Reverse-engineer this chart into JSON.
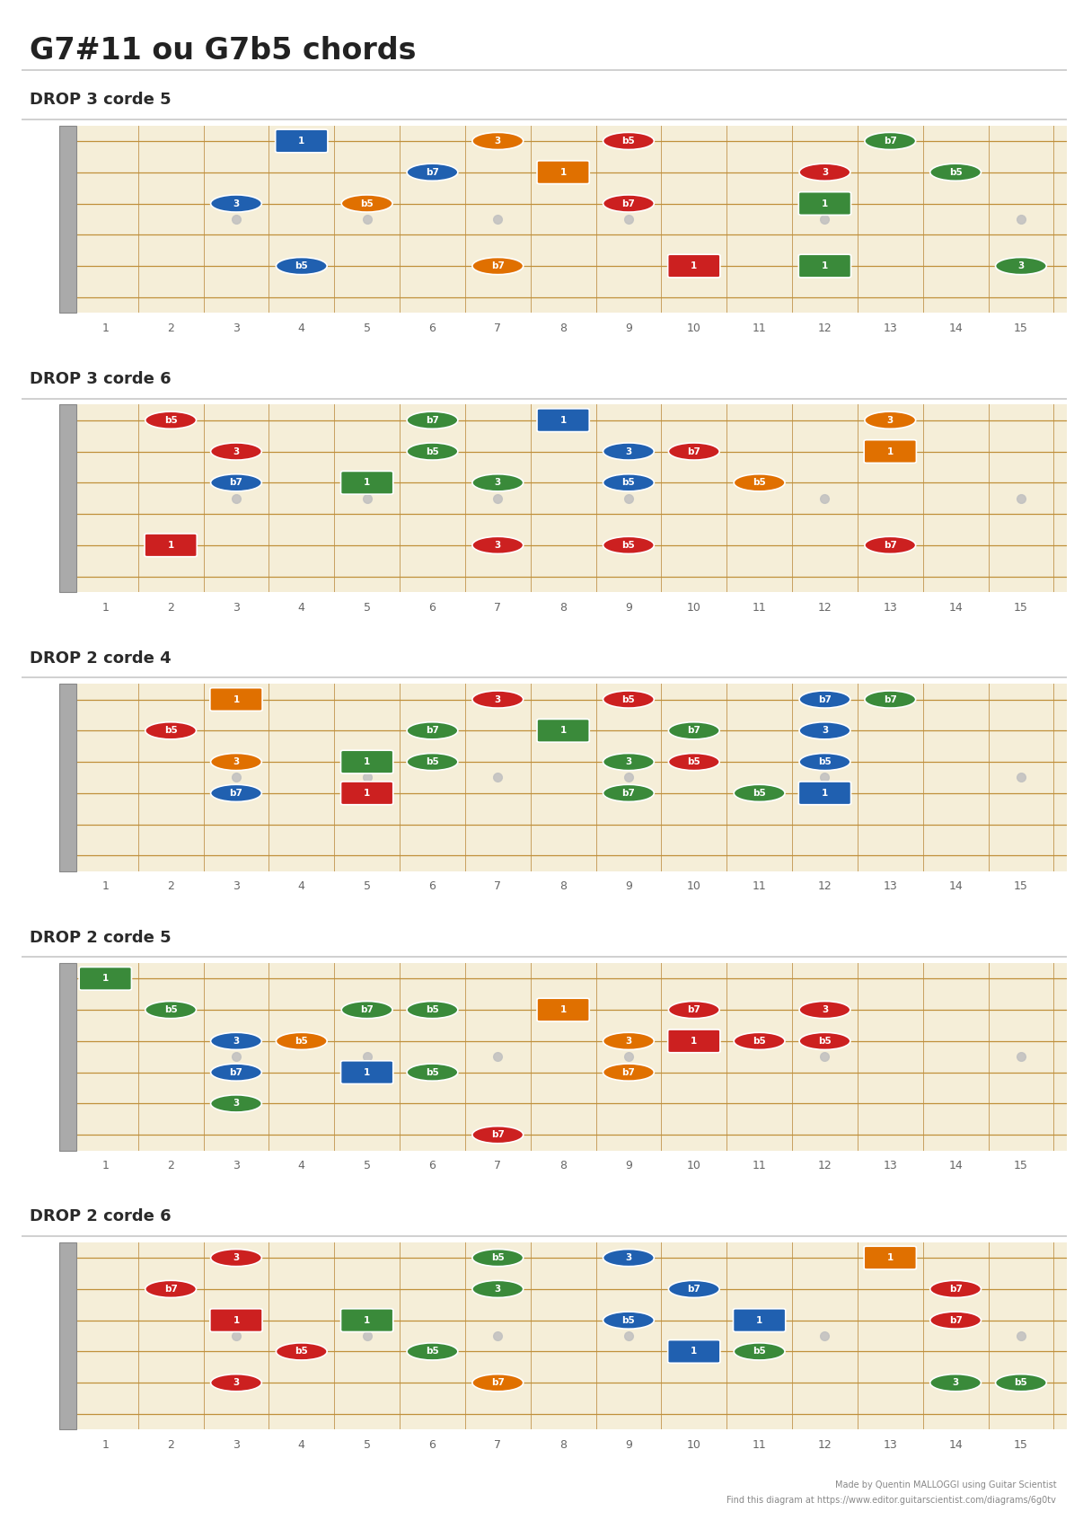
{
  "title": "G7#11 ou G7b5 chords",
  "bg_color": "#ffffff",
  "fretboard_bg": "#f5eed8",
  "fret_color": "#c8a060",
  "string_color": "#c0903a",
  "n_frets": 15,
  "n_strings": 6,
  "marker_frets": [
    3,
    5,
    7,
    9,
    12,
    15
  ],
  "sections": [
    {
      "label": "DROP 3 corde 5",
      "notes": [
        {
          "fret": 4,
          "string": 1,
          "label": "1",
          "color": "#2060b0",
          "shape": "square"
        },
        {
          "fret": 7,
          "string": 1,
          "label": "3",
          "color": "#e07000",
          "shape": "circle"
        },
        {
          "fret": 9,
          "string": 1,
          "label": "b5",
          "color": "#cc2020",
          "shape": "circle"
        },
        {
          "fret": 13,
          "string": 1,
          "label": "b7",
          "color": "#3a8a3a",
          "shape": "circle"
        },
        {
          "fret": 6,
          "string": 2,
          "label": "b7",
          "color": "#2060b0",
          "shape": "circle"
        },
        {
          "fret": 8,
          "string": 2,
          "label": "1",
          "color": "#e07000",
          "shape": "square"
        },
        {
          "fret": 12,
          "string": 2,
          "label": "3",
          "color": "#cc2020",
          "shape": "circle"
        },
        {
          "fret": 14,
          "string": 2,
          "label": "b5",
          "color": "#3a8a3a",
          "shape": "circle"
        },
        {
          "fret": 3,
          "string": 3,
          "label": "3",
          "color": "#2060b0",
          "shape": "circle"
        },
        {
          "fret": 5,
          "string": 3,
          "label": "b5",
          "color": "#e07000",
          "shape": "circle"
        },
        {
          "fret": 9,
          "string": 3,
          "label": "b7",
          "color": "#cc2020",
          "shape": "circle"
        },
        {
          "fret": 12,
          "string": 3,
          "label": "1",
          "color": "#3a8a3a",
          "shape": "square"
        },
        {
          "fret": 4,
          "string": 5,
          "label": "b5",
          "color": "#2060b0",
          "shape": "circle"
        },
        {
          "fret": 7,
          "string": 5,
          "label": "b7",
          "color": "#e07000",
          "shape": "circle"
        },
        {
          "fret": 10,
          "string": 5,
          "label": "1",
          "color": "#cc2020",
          "shape": "square"
        },
        {
          "fret": 12,
          "string": 5,
          "label": "1",
          "color": "#3a8a3a",
          "shape": "square"
        },
        {
          "fret": 15,
          "string": 5,
          "label": "3",
          "color": "#3a8a3a",
          "shape": "circle"
        }
      ]
    },
    {
      "label": "DROP 3 corde 6",
      "notes": [
        {
          "fret": 2,
          "string": 1,
          "label": "b5",
          "color": "#cc2020",
          "shape": "circle"
        },
        {
          "fret": 6,
          "string": 1,
          "label": "b7",
          "color": "#3a8a3a",
          "shape": "circle"
        },
        {
          "fret": 8,
          "string": 1,
          "label": "1",
          "color": "#2060b0",
          "shape": "square"
        },
        {
          "fret": 13,
          "string": 1,
          "label": "3",
          "color": "#e07000",
          "shape": "circle"
        },
        {
          "fret": 3,
          "string": 2,
          "label": "3",
          "color": "#cc2020",
          "shape": "circle"
        },
        {
          "fret": 6,
          "string": 2,
          "label": "b5",
          "color": "#3a8a3a",
          "shape": "circle"
        },
        {
          "fret": 9,
          "string": 2,
          "label": "3",
          "color": "#2060b0",
          "shape": "circle"
        },
        {
          "fret": 10,
          "string": 2,
          "label": "b7",
          "color": "#cc2020",
          "shape": "circle"
        },
        {
          "fret": 13,
          "string": 2,
          "label": "1",
          "color": "#e07000",
          "shape": "square"
        },
        {
          "fret": 3,
          "string": 3,
          "label": "b7",
          "color": "#2060b0",
          "shape": "circle"
        },
        {
          "fret": 5,
          "string": 3,
          "label": "1",
          "color": "#3a8a3a",
          "shape": "square"
        },
        {
          "fret": 7,
          "string": 3,
          "label": "3",
          "color": "#3a8a3a",
          "shape": "circle"
        },
        {
          "fret": 9,
          "string": 3,
          "label": "b5",
          "color": "#2060b0",
          "shape": "circle"
        },
        {
          "fret": 11,
          "string": 3,
          "label": "b5",
          "color": "#e07000",
          "shape": "circle"
        },
        {
          "fret": 2,
          "string": 5,
          "label": "1",
          "color": "#cc2020",
          "shape": "square"
        },
        {
          "fret": 7,
          "string": 5,
          "label": "3",
          "color": "#cc2020",
          "shape": "circle"
        },
        {
          "fret": 9,
          "string": 5,
          "label": "b5",
          "color": "#cc2020",
          "shape": "circle"
        },
        {
          "fret": 13,
          "string": 5,
          "label": "b7",
          "color": "#cc2020",
          "shape": "circle"
        }
      ]
    },
    {
      "label": "DROP 2 corde 4",
      "notes": [
        {
          "fret": 3,
          "string": 1,
          "label": "1",
          "color": "#e07000",
          "shape": "square"
        },
        {
          "fret": 7,
          "string": 1,
          "label": "3",
          "color": "#cc2020",
          "shape": "circle"
        },
        {
          "fret": 9,
          "string": 1,
          "label": "b5",
          "color": "#cc2020",
          "shape": "circle"
        },
        {
          "fret": 12,
          "string": 1,
          "label": "b7",
          "color": "#2060b0",
          "shape": "circle"
        },
        {
          "fret": 2,
          "string": 2,
          "label": "b5",
          "color": "#cc2020",
          "shape": "circle"
        },
        {
          "fret": 6,
          "string": 2,
          "label": "b7",
          "color": "#3a8a3a",
          "shape": "circle"
        },
        {
          "fret": 8,
          "string": 2,
          "label": "1",
          "color": "#3a8a3a",
          "shape": "square"
        },
        {
          "fret": 10,
          "string": 2,
          "label": "b7",
          "color": "#3a8a3a",
          "shape": "circle"
        },
        {
          "fret": 12,
          "string": 2,
          "label": "3",
          "color": "#2060b0",
          "shape": "circle"
        },
        {
          "fret": 3,
          "string": 3,
          "label": "3",
          "color": "#e07000",
          "shape": "circle"
        },
        {
          "fret": 5,
          "string": 3,
          "label": "1",
          "color": "#3a8a3a",
          "shape": "square"
        },
        {
          "fret": 6,
          "string": 3,
          "label": "b5",
          "color": "#3a8a3a",
          "shape": "circle"
        },
        {
          "fret": 9,
          "string": 3,
          "label": "3",
          "color": "#3a8a3a",
          "shape": "circle"
        },
        {
          "fret": 10,
          "string": 3,
          "label": "b5",
          "color": "#cc2020",
          "shape": "circle"
        },
        {
          "fret": 12,
          "string": 3,
          "label": "b5",
          "color": "#2060b0",
          "shape": "circle"
        },
        {
          "fret": 3,
          "string": 4,
          "label": "b7",
          "color": "#2060b0",
          "shape": "circle"
        },
        {
          "fret": 5,
          "string": 4,
          "label": "1",
          "color": "#cc2020",
          "shape": "square"
        },
        {
          "fret": 9,
          "string": 4,
          "label": "b7",
          "color": "#3a8a3a",
          "shape": "circle"
        },
        {
          "fret": 11,
          "string": 4,
          "label": "b5",
          "color": "#3a8a3a",
          "shape": "circle"
        },
        {
          "fret": 12,
          "string": 4,
          "label": "1",
          "color": "#2060b0",
          "shape": "square"
        },
        {
          "fret": 13,
          "string": 1,
          "label": "b7",
          "color": "#3a8a3a",
          "shape": "circle"
        }
      ]
    },
    {
      "label": "DROP 2 corde 5",
      "notes": [
        {
          "fret": 1,
          "string": 1,
          "label": "1",
          "color": "#3a8a3a",
          "shape": "square"
        },
        {
          "fret": 2,
          "string": 2,
          "label": "b5",
          "color": "#3a8a3a",
          "shape": "circle"
        },
        {
          "fret": 5,
          "string": 2,
          "label": "b7",
          "color": "#3a8a3a",
          "shape": "circle"
        },
        {
          "fret": 6,
          "string": 2,
          "label": "b5",
          "color": "#3a8a3a",
          "shape": "circle"
        },
        {
          "fret": 8,
          "string": 2,
          "label": "1",
          "color": "#e07000",
          "shape": "square"
        },
        {
          "fret": 10,
          "string": 2,
          "label": "b7",
          "color": "#cc2020",
          "shape": "circle"
        },
        {
          "fret": 12,
          "string": 2,
          "label": "3",
          "color": "#cc2020",
          "shape": "circle"
        },
        {
          "fret": 3,
          "string": 3,
          "label": "3",
          "color": "#2060b0",
          "shape": "circle"
        },
        {
          "fret": 4,
          "string": 3,
          "label": "b5",
          "color": "#e07000",
          "shape": "circle"
        },
        {
          "fret": 9,
          "string": 3,
          "label": "3",
          "color": "#e07000",
          "shape": "circle"
        },
        {
          "fret": 10,
          "string": 3,
          "label": "1",
          "color": "#cc2020",
          "shape": "square"
        },
        {
          "fret": 11,
          "string": 3,
          "label": "b5",
          "color": "#cc2020",
          "shape": "circle"
        },
        {
          "fret": 12,
          "string": 3,
          "label": "b5",
          "color": "#cc2020",
          "shape": "circle"
        },
        {
          "fret": 3,
          "string": 4,
          "label": "b7",
          "color": "#2060b0",
          "shape": "circle"
        },
        {
          "fret": 5,
          "string": 4,
          "label": "1",
          "color": "#2060b0",
          "shape": "square"
        },
        {
          "fret": 6,
          "string": 4,
          "label": "b5",
          "color": "#3a8a3a",
          "shape": "circle"
        },
        {
          "fret": 9,
          "string": 4,
          "label": "b7",
          "color": "#e07000",
          "shape": "circle"
        },
        {
          "fret": 3,
          "string": 5,
          "label": "3",
          "color": "#3a8a3a",
          "shape": "circle"
        },
        {
          "fret": 7,
          "string": 6,
          "label": "b7",
          "color": "#cc2020",
          "shape": "circle"
        }
      ]
    },
    {
      "label": "DROP 2 corde 6",
      "notes": [
        {
          "fret": 3,
          "string": 1,
          "label": "3",
          "color": "#cc2020",
          "shape": "circle"
        },
        {
          "fret": 7,
          "string": 1,
          "label": "b5",
          "color": "#3a8a3a",
          "shape": "circle"
        },
        {
          "fret": 9,
          "string": 1,
          "label": "3",
          "color": "#2060b0",
          "shape": "circle"
        },
        {
          "fret": 13,
          "string": 1,
          "label": "1",
          "color": "#e07000",
          "shape": "square"
        },
        {
          "fret": 2,
          "string": 2,
          "label": "b7",
          "color": "#cc2020",
          "shape": "circle"
        },
        {
          "fret": 7,
          "string": 2,
          "label": "3",
          "color": "#3a8a3a",
          "shape": "circle"
        },
        {
          "fret": 10,
          "string": 2,
          "label": "b7",
          "color": "#2060b0",
          "shape": "circle"
        },
        {
          "fret": 14,
          "string": 2,
          "label": "b7",
          "color": "#cc2020",
          "shape": "circle"
        },
        {
          "fret": 3,
          "string": 3,
          "label": "1",
          "color": "#cc2020",
          "shape": "square"
        },
        {
          "fret": 5,
          "string": 3,
          "label": "1",
          "color": "#3a8a3a",
          "shape": "square"
        },
        {
          "fret": 9,
          "string": 3,
          "label": "b5",
          "color": "#2060b0",
          "shape": "circle"
        },
        {
          "fret": 11,
          "string": 3,
          "label": "1",
          "color": "#2060b0",
          "shape": "square"
        },
        {
          "fret": 14,
          "string": 3,
          "label": "b7",
          "color": "#cc2020",
          "shape": "circle"
        },
        {
          "fret": 4,
          "string": 4,
          "label": "b5",
          "color": "#cc2020",
          "shape": "circle"
        },
        {
          "fret": 6,
          "string": 4,
          "label": "b5",
          "color": "#3a8a3a",
          "shape": "circle"
        },
        {
          "fret": 10,
          "string": 4,
          "label": "1",
          "color": "#2060b0",
          "shape": "square"
        },
        {
          "fret": 11,
          "string": 4,
          "label": "b5",
          "color": "#3a8a3a",
          "shape": "circle"
        },
        {
          "fret": 3,
          "string": 5,
          "label": "3",
          "color": "#cc2020",
          "shape": "circle"
        },
        {
          "fret": 7,
          "string": 5,
          "label": "b7",
          "color": "#e07000",
          "shape": "circle"
        },
        {
          "fret": 14,
          "string": 5,
          "label": "3",
          "color": "#3a8a3a",
          "shape": "circle"
        },
        {
          "fret": 15,
          "string": 5,
          "label": "b5",
          "color": "#3a8a3a",
          "shape": "circle"
        }
      ]
    }
  ],
  "footer_line1": "Made by Quentin MALLOGGI using Guitar Scientist",
  "footer_line2": "Find this diagram at https://www.editor.guitarscientist.com/diagrams/6g0tv"
}
